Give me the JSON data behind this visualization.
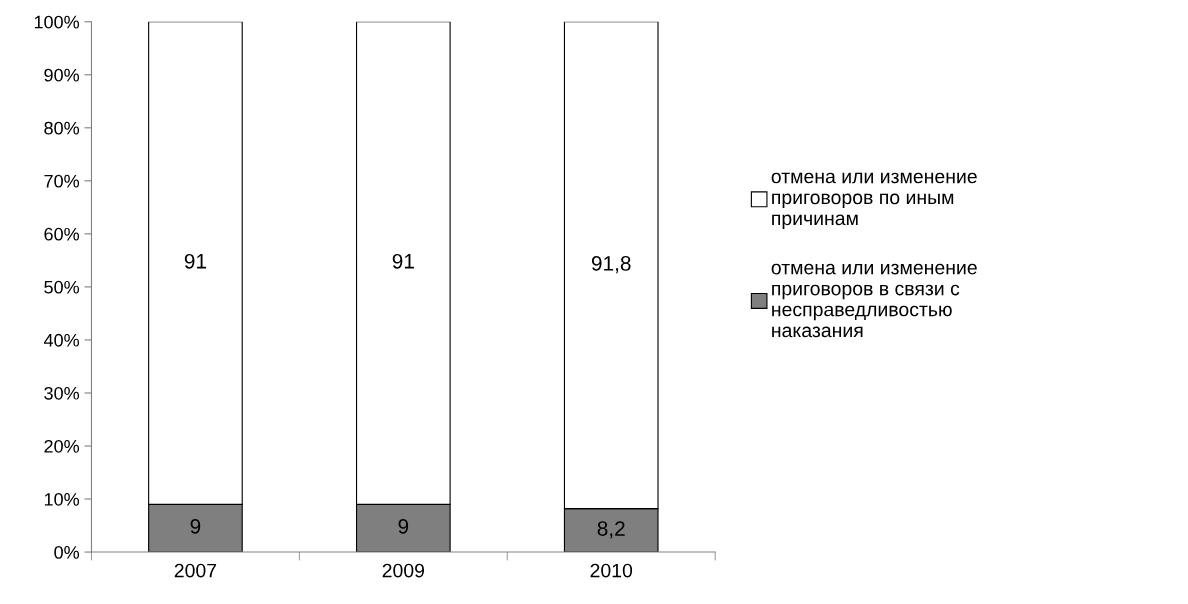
{
  "chart_data": {
    "type": "bar",
    "stacked": true,
    "categories": [
      "2007",
      "2009",
      "2010"
    ],
    "series": [
      {
        "name": "отмена или изменение приговоров в связи с несправедливостью наказания",
        "color": "#7f7f7f",
        "values": [
          9,
          9,
          8.2
        ],
        "value_labels": [
          "9",
          "9",
          "8,2"
        ]
      },
      {
        "name": "отмена или изменение приговоров по иным причинам",
        "color": "#ffffff",
        "values": [
          91,
          91,
          91.8
        ],
        "value_labels": [
          "91",
          "91",
          "91,8"
        ]
      }
    ],
    "ylim": [
      0,
      100
    ],
    "yticks": [
      {
        "value": 0,
        "label": "0%"
      },
      {
        "value": 10,
        "label": "10%"
      },
      {
        "value": 20,
        "label": "20%"
      },
      {
        "value": 30,
        "label": "30%"
      },
      {
        "value": 40,
        "label": "40%"
      },
      {
        "value": 50,
        "label": "50%"
      },
      {
        "value": 60,
        "label": "60%"
      },
      {
        "value": 70,
        "label": "70%"
      },
      {
        "value": 80,
        "label": "80%"
      },
      {
        "value": 90,
        "label": "90%"
      },
      {
        "value": 100,
        "label": "100%"
      }
    ],
    "grid": false,
    "legend": "right"
  }
}
